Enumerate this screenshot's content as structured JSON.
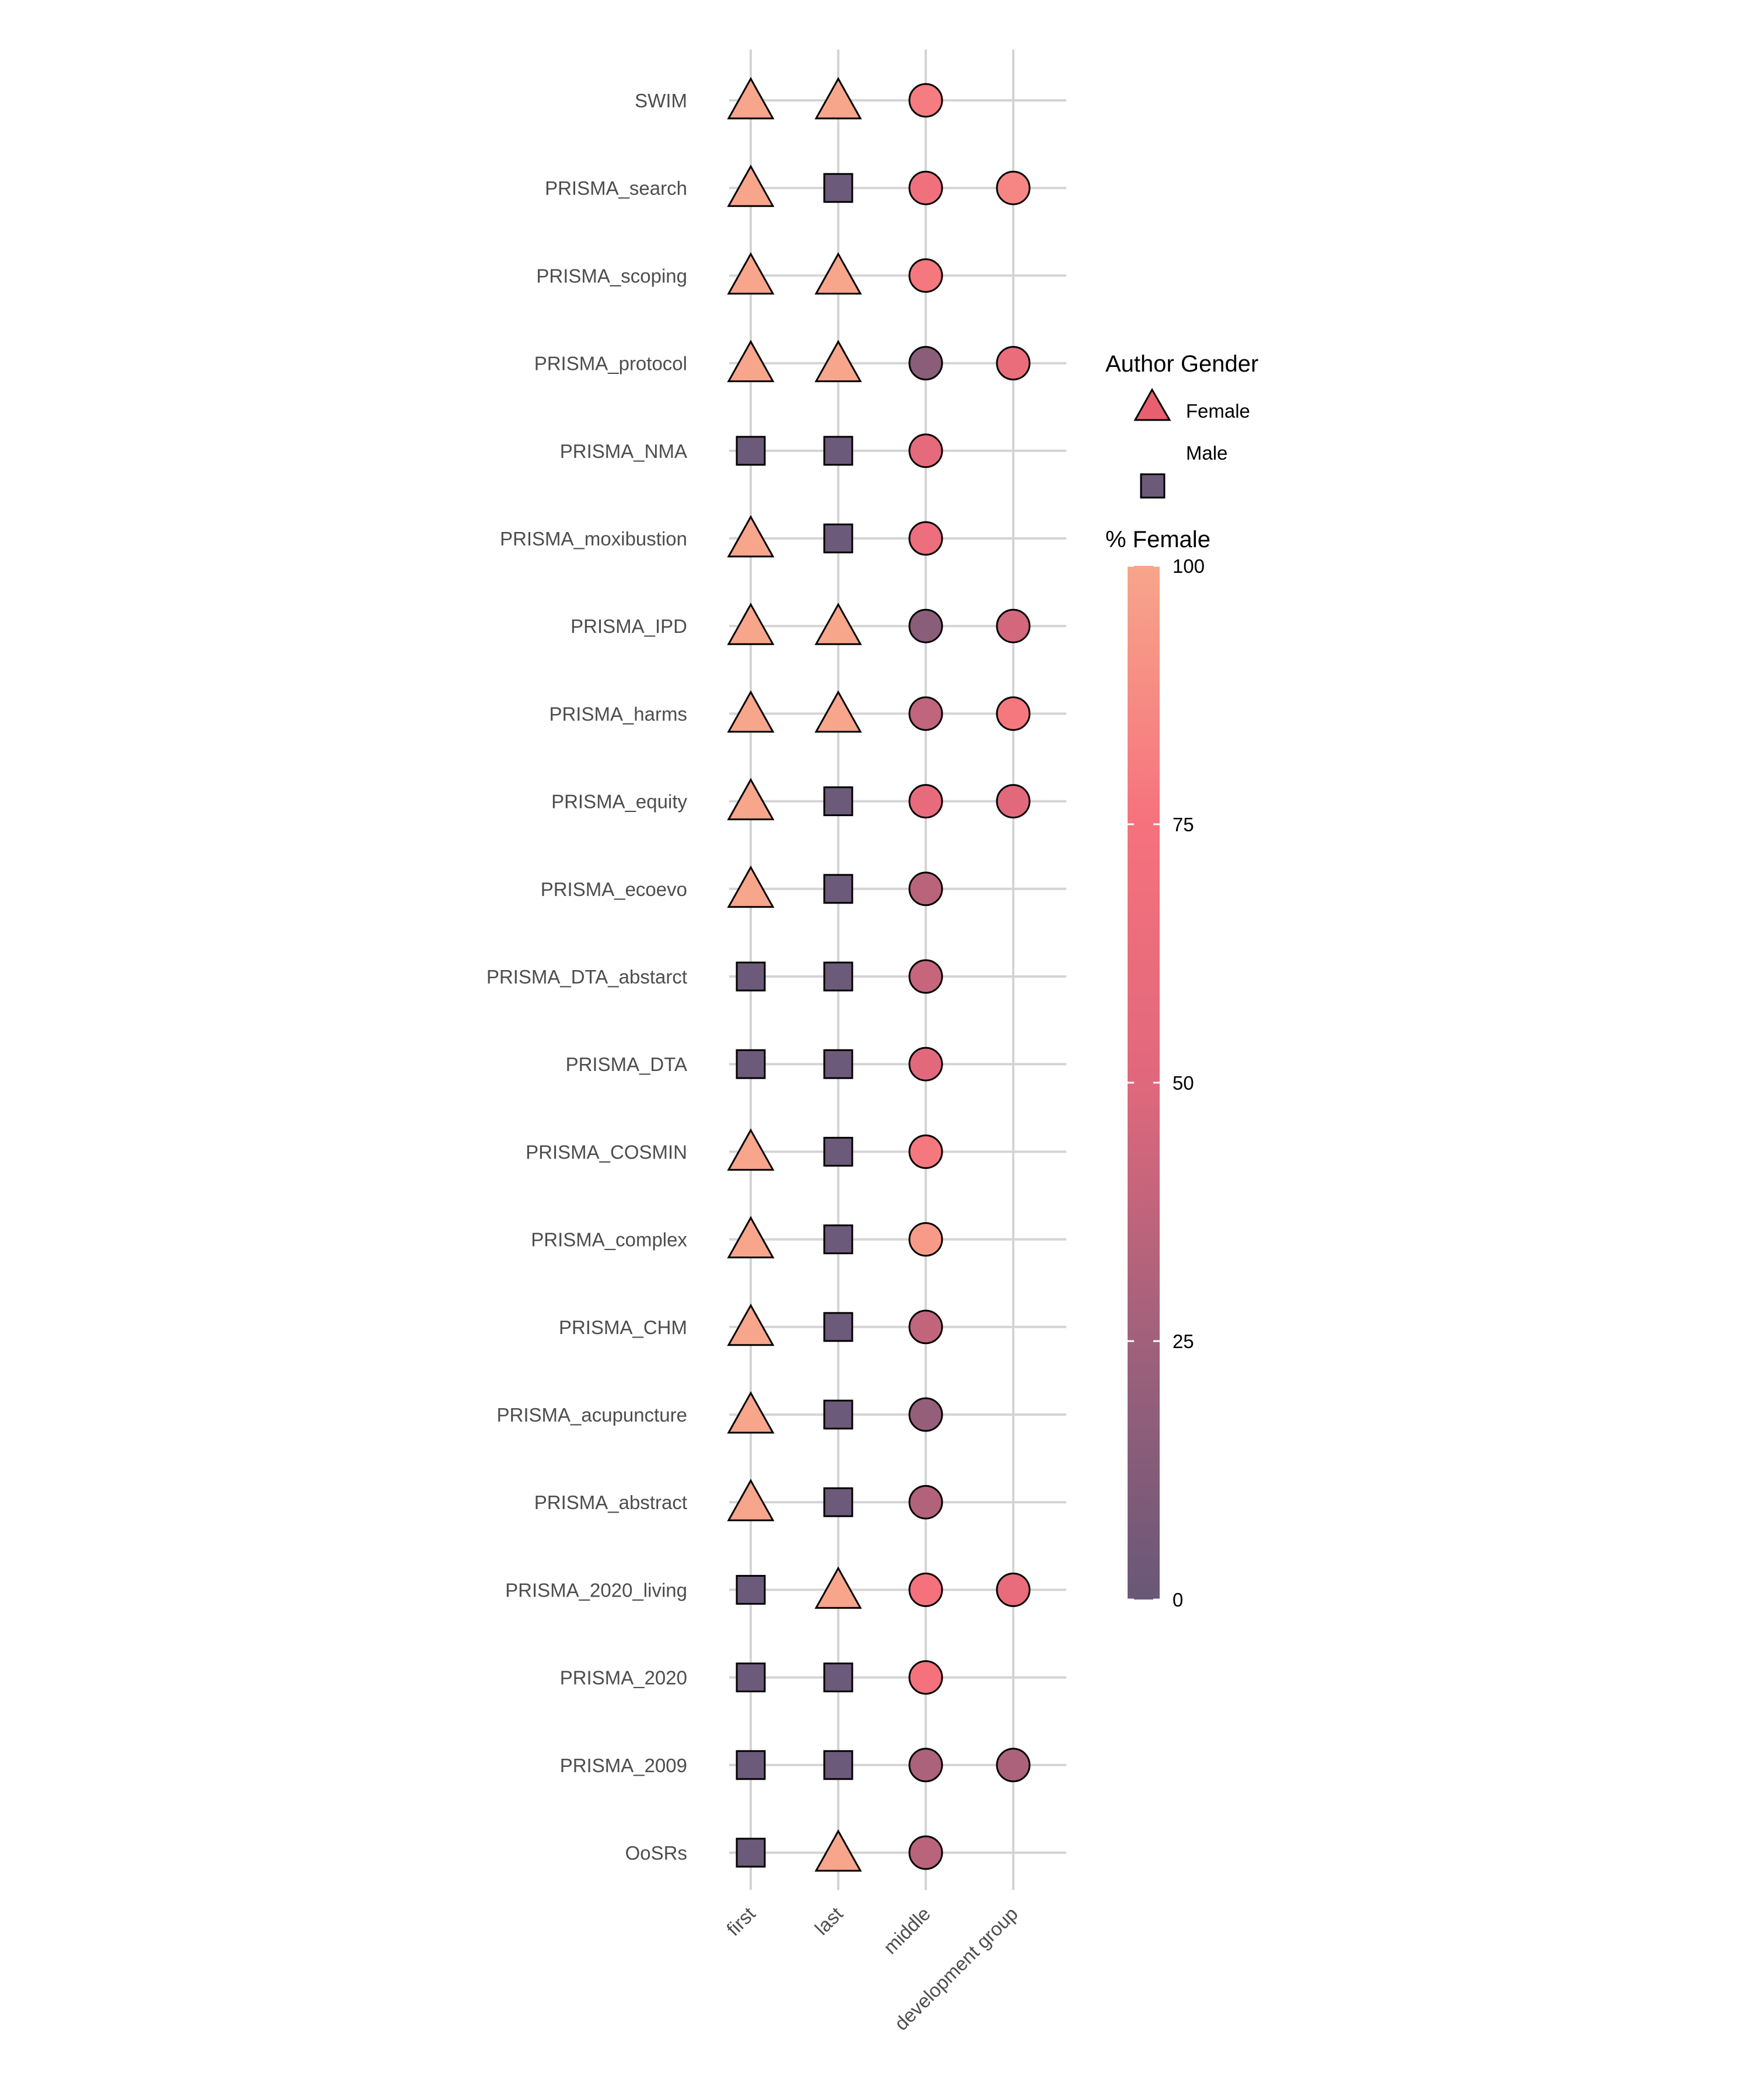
{
  "chart_data": {
    "type": "scatter",
    "x_categories": [
      "first",
      "last",
      "middle",
      "development group"
    ],
    "y_categories": [
      "SWIM",
      "PRISMA_search",
      "PRISMA_scoping",
      "PRISMA_protocol",
      "PRISMA_NMA ",
      "PRISMA_moxibustion",
      "PRISMA_IPD",
      "PRISMA_harms",
      "PRISMA_equity",
      "PRISMA_ecoevo",
      "PRISMA_DTA_abstarct",
      "PRISMA_DTA",
      "PRISMA_COSMIN",
      "PRISMA_complex",
      "PRISMA_CHM",
      "PRISMA_acupuncture ",
      "PRISMA_abstract",
      "PRISMA_2020_living",
      "PRISMA_2020",
      "PRISMA_2009",
      "OoSRs"
    ],
    "rows": [
      {
        "guideline": "SWIM",
        "first": "Female",
        "last": "Female",
        "middle_pct_female": 80,
        "dev_group_pct_female": null
      },
      {
        "guideline": "PRISMA_search",
        "first": "Female",
        "last": "Male",
        "middle_pct_female": 70,
        "dev_group_pct_female": 85
      },
      {
        "guideline": "PRISMA_scoping",
        "first": "Female",
        "last": "Female",
        "middle_pct_female": 78,
        "dev_group_pct_female": null
      },
      {
        "guideline": "PRISMA_protocol",
        "first": "Female",
        "last": "Female",
        "middle_pct_female": 15,
        "dev_group_pct_female": 62
      },
      {
        "guideline": "PRISMA_NMA ",
        "first": "Male",
        "last": "Male",
        "middle_pct_female": 55,
        "dev_group_pct_female": null
      },
      {
        "guideline": "PRISMA_moxibustion",
        "first": "Female",
        "last": "Male",
        "middle_pct_female": 65,
        "dev_group_pct_female": null
      },
      {
        "guideline": "PRISMA_IPD",
        "first": "Female",
        "last": "Female",
        "middle_pct_female": 15,
        "dev_group_pct_female": 45
      },
      {
        "guideline": "PRISMA_harms",
        "first": "Female",
        "last": "Female",
        "middle_pct_female": 38,
        "dev_group_pct_female": 78
      },
      {
        "guideline": "PRISMA_equity",
        "first": "Female",
        "last": "Male",
        "middle_pct_female": 58,
        "dev_group_pct_female": 52
      },
      {
        "guideline": "PRISMA_ecoevo",
        "first": "Female",
        "last": "Male",
        "middle_pct_female": 35,
        "dev_group_pct_female": null
      },
      {
        "guideline": "PRISMA_DTA_abstarct",
        "first": "Male",
        "last": "Male",
        "middle_pct_female": 40,
        "dev_group_pct_female": null
      },
      {
        "guideline": "PRISMA_DTA",
        "first": "Male",
        "last": "Male",
        "middle_pct_female": 52,
        "dev_group_pct_female": null
      },
      {
        "guideline": "PRISMA_COSMIN",
        "first": "Female",
        "last": "Male",
        "middle_pct_female": 78,
        "dev_group_pct_female": null
      },
      {
        "guideline": "PRISMA_complex",
        "first": "Female",
        "last": "Male",
        "middle_pct_female": 95,
        "dev_group_pct_female": null
      },
      {
        "guideline": "PRISMA_CHM",
        "first": "Female",
        "last": "Male",
        "middle_pct_female": 38,
        "dev_group_pct_female": null
      },
      {
        "guideline": "PRISMA_acupuncture ",
        "first": "Female",
        "last": "Male",
        "middle_pct_female": 20,
        "dev_group_pct_female": null
      },
      {
        "guideline": "PRISMA_abstract",
        "first": "Female",
        "last": "Male",
        "middle_pct_female": 32,
        "dev_group_pct_female": null
      },
      {
        "guideline": "PRISMA_2020_living",
        "first": "Male",
        "last": "Female",
        "middle_pct_female": 75,
        "dev_group_pct_female": 60
      },
      {
        "guideline": "PRISMA_2020",
        "first": "Male",
        "last": "Male",
        "middle_pct_female": 75,
        "dev_group_pct_female": null
      },
      {
        "guideline": "PRISMA_2009",
        "first": "Male",
        "last": "Male",
        "middle_pct_female": 30,
        "dev_group_pct_female": 30
      },
      {
        "guideline": "OoSRs",
        "first": "Male",
        "last": "Female",
        "middle_pct_female": 35,
        "dev_group_pct_female": null
      }
    ],
    "legend_shape": {
      "title": "Author Gender",
      "items": [
        {
          "label": "Female",
          "shape": "triangle"
        },
        {
          "label": "Male",
          "shape": "square"
        }
      ]
    },
    "legend_color": {
      "title": "% Female",
      "ticks": [
        0,
        25,
        50,
        75,
        100
      ],
      "tick_labels": [
        "0",
        "25",
        "50",
        "75",
        "100"
      ],
      "scale": [
        "#685877",
        "#a0617b",
        "#e0687c",
        "#f5727d",
        "#f7a58b"
      ]
    },
    "colors": {
      "male": "#6b5a79",
      "female": "#f7a58b",
      "gridline": "#d4d4d4",
      "outline": "#000000"
    },
    "grid": true,
    "legend_position": "right"
  }
}
